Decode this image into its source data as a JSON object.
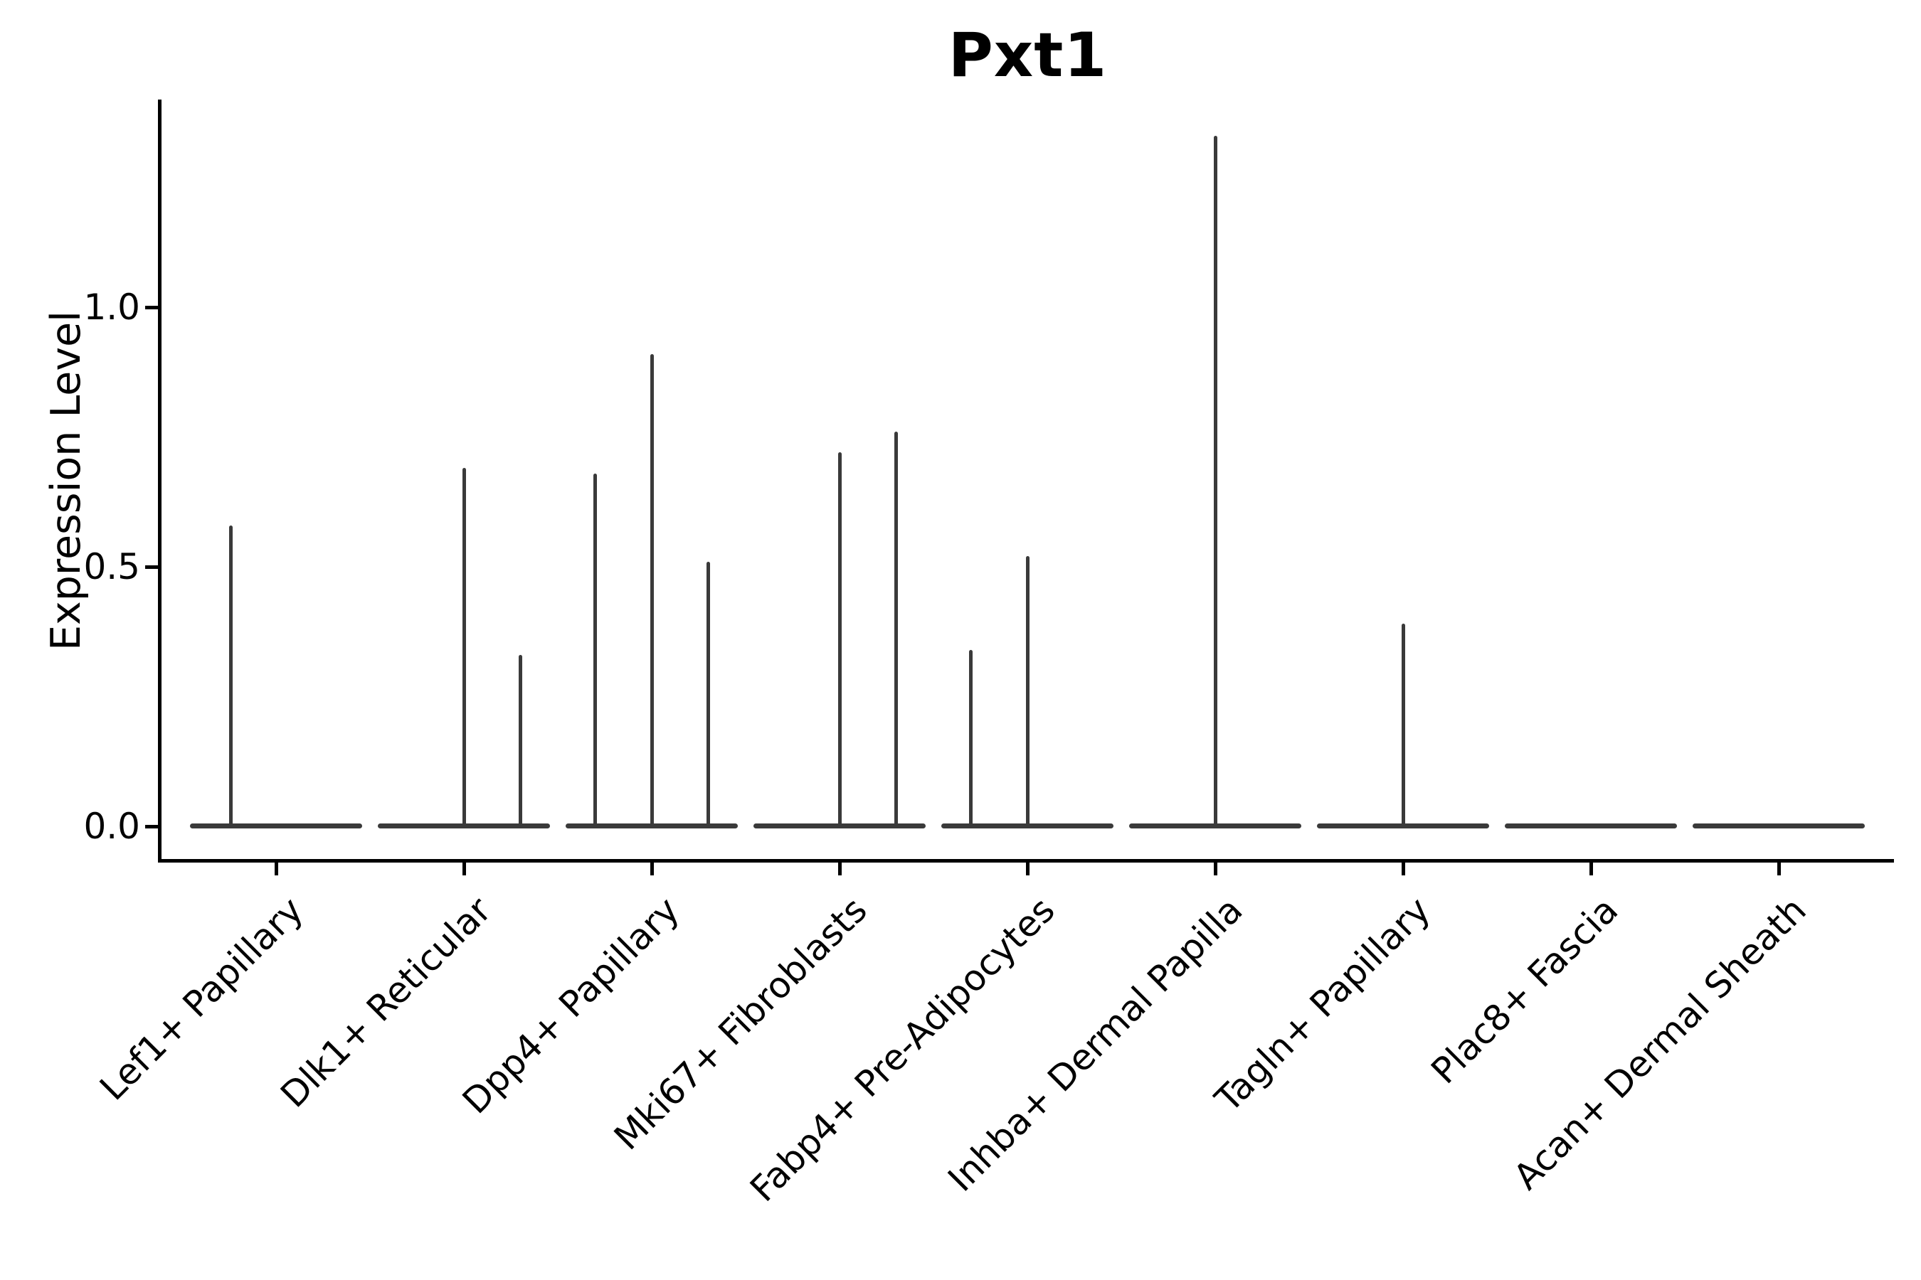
{
  "chart_data": {
    "type": "violin",
    "title": "Pxt1",
    "xlabel": "",
    "ylabel": "Expression Level",
    "ylim": [
      -0.07,
      1.4
    ],
    "yticks": [
      {
        "value": 0.0,
        "label": "0.0"
      },
      {
        "value": 0.5,
        "label": "0.5"
      },
      {
        "value": 1.0,
        "label": "1.0"
      }
    ],
    "grid": false,
    "legend": "none",
    "violin_color": "#3a3a3a",
    "axis_color": "#000000",
    "x_label_rotation_deg": 45,
    "categories": [
      "Lef1+ Papillary",
      "Dlk1+ Reticular",
      "Dpp4+ Papillary",
      "Mki67+ Fibroblasts",
      "Fabp4+ Pre-Adipocytes",
      "Inhba+ Dermal Papilla",
      "Tagln+ Papillary",
      "Plac8+ Fascia",
      "Acan+ Dermal Sheath"
    ],
    "groups": [
      {
        "label": "Lef1+ Papillary",
        "baseline_value": 0.0,
        "spikes": [
          {
            "offset": -0.24,
            "max": 0.58
          }
        ]
      },
      {
        "label": "Dlk1+ Reticular",
        "baseline_value": 0.0,
        "spikes": [
          {
            "offset": 0.0,
            "max": 0.69
          },
          {
            "offset": 0.3,
            "max": 0.33
          }
        ]
      },
      {
        "label": "Dpp4+ Papillary",
        "baseline_value": 0.0,
        "spikes": [
          {
            "offset": -0.3,
            "max": 0.68
          },
          {
            "offset": 0.0,
            "max": 0.91
          },
          {
            "offset": 0.3,
            "max": 0.51
          }
        ]
      },
      {
        "label": "Mki67+ Fibroblasts",
        "baseline_value": 0.0,
        "spikes": [
          {
            "offset": 0.0,
            "max": 0.72
          },
          {
            "offset": 0.3,
            "max": 0.76
          }
        ]
      },
      {
        "label": "Fabp4+ Pre-Adipocytes",
        "baseline_value": 0.0,
        "spikes": [
          {
            "offset": -0.3,
            "max": 0.34
          },
          {
            "offset": 0.0,
            "max": 0.52
          }
        ]
      },
      {
        "label": "Inhba+ Dermal Papilla",
        "baseline_value": 0.0,
        "spikes": [
          {
            "offset": 0.0,
            "max": 1.33
          }
        ]
      },
      {
        "label": "Tagln+ Papillary",
        "baseline_value": 0.0,
        "spikes": [
          {
            "offset": 0.0,
            "max": 0.39
          }
        ]
      },
      {
        "label": "Plac8+ Fascia",
        "baseline_value": 0.0,
        "spikes": []
      },
      {
        "label": "Acan+ Dermal Sheath",
        "baseline_value": 0.0,
        "spikes": []
      }
    ]
  }
}
